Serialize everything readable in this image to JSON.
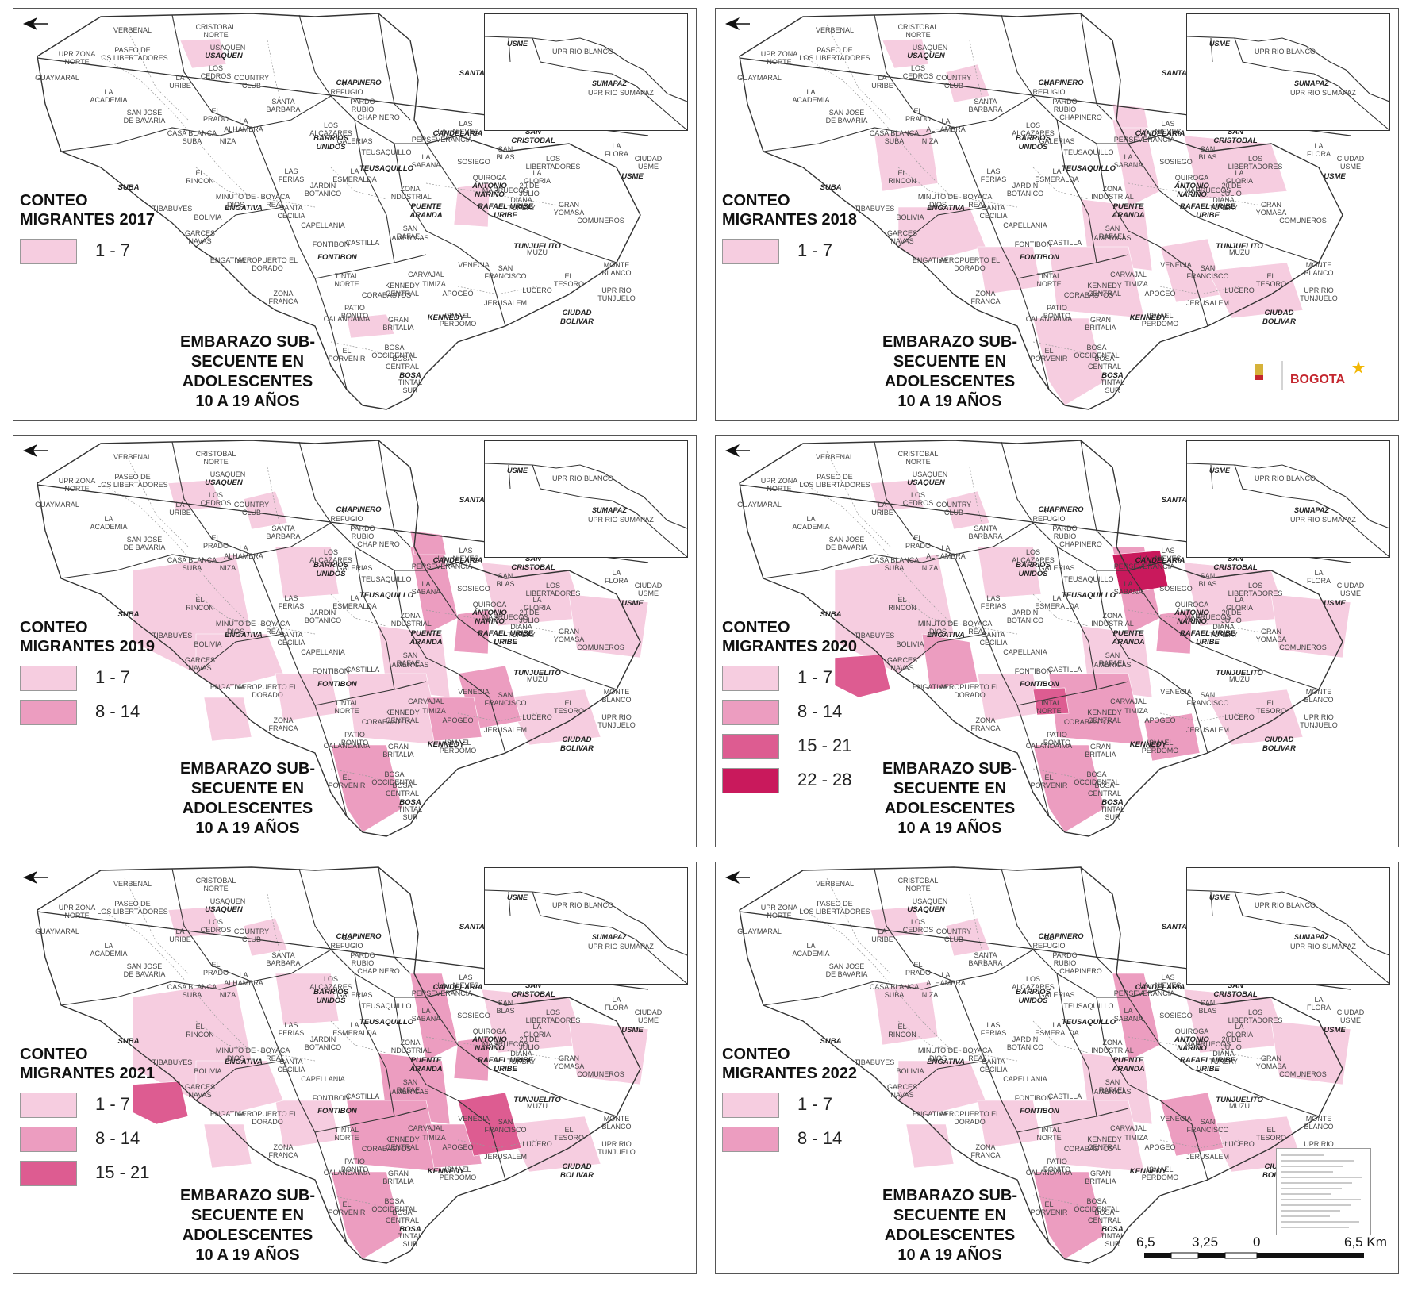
{
  "legend_colors": {
    "1-7": "#f6cde0",
    "8-14": "#ec9dc0",
    "15-21": "#dd5c91",
    "22-28": "#c9195c"
  },
  "subject_lines": [
    "EMBARAZO SUB-",
    "SECUENTE EN",
    "ADOLESCENTES",
    "10 A 19 AÑOS"
  ],
  "panels": [
    {
      "title_line1": "CONTEO",
      "title_line2": "MIGRANTES 2017",
      "legend": [
        {
          "range": "1 - 7",
          "color_key": "1-7"
        }
      ]
    },
    {
      "title_line1": "CONTEO",
      "title_line2": "MIGRANTES 2018",
      "legend": [
        {
          "range": "1 - 7",
          "color_key": "1-7"
        }
      ]
    },
    {
      "title_line1": "CONTEO",
      "title_line2": "MIGRANTES 2019",
      "legend": [
        {
          "range": "1 - 7",
          "color_key": "1-7"
        },
        {
          "range": "8 - 14",
          "color_key": "8-14"
        }
      ]
    },
    {
      "title_line1": "CONTEO",
      "title_line2": "MIGRANTES 2020",
      "legend": [
        {
          "range": "1 - 7",
          "color_key": "1-7"
        },
        {
          "range": "8 - 14",
          "color_key": "8-14"
        },
        {
          "range": "15 - 21",
          "color_key": "15-21"
        },
        {
          "range": "22 - 28",
          "color_key": "22-28"
        }
      ]
    },
    {
      "title_line1": "CONTEO",
      "title_line2": "MIGRANTES 2021",
      "legend": [
        {
          "range": "1 - 7",
          "color_key": "1-7"
        },
        {
          "range": "8 - 14",
          "color_key": "8-14"
        },
        {
          "range": "15 - 21",
          "color_key": "15-21"
        }
      ]
    },
    {
      "title_line1": "CONTEO",
      "title_line2": "MIGRANTES 2022",
      "legend": [
        {
          "range": "1 - 7",
          "color_key": "1-7"
        },
        {
          "range": "8 - 14",
          "color_key": "8-14"
        }
      ]
    }
  ],
  "localities": [
    "USAQUEN",
    "CHAPINERO",
    "SANTA FE",
    "SAN CRISTOBAL",
    "BARRIOS UNIDOS",
    "TEUSAQUILLO",
    "CANDELARIA",
    "ANTONIO NARIÑO",
    "PUENTE ARANDA",
    "RAFAEL URIBE URIBE",
    "SUBA",
    "ENGATIVA",
    "FONTIBON",
    "KENNEDY",
    "TUNJUELITO",
    "BOSA",
    "CIUDAD BOLIVAR",
    "USME"
  ],
  "upz_labels": [
    "CRISTOBAL NORTE",
    "USAQUEN",
    "LOS CEDROS",
    "LA URIBE",
    "COUNTRY CLUB",
    "EL REFUGIO",
    "SANTA BARBARA",
    "EL PRADO",
    "LA ALHAMBRA",
    "PARDO RUBIO",
    "CHAPINERO",
    "LOS ALCAZARES",
    "NIZA",
    "CASA BLANCA SUBA",
    "SAN JOSE DE BAVARIA",
    "LA ACADEMIA",
    "GUAYMARAL",
    "VERBENAL",
    "PASEO DE LOS LIBERTADORES",
    "UPR ZONA NORTE",
    "EL RINCON",
    "TIBABUYES",
    "BOLIVIA",
    "GARCES NAVAS",
    "ENGATIVA",
    "MINUTO DE DIOS",
    "BOYACA REAL",
    "SANTA CECILIA",
    "JARDIN BOTANICO",
    "LAS FERIAS",
    "LA ESMERALDA",
    "GALERIAS",
    "TEUSAQUILLO",
    "LA SABANA",
    "ZONA INDUSTRIAL",
    "SAN RAFAEL",
    "AMERICAS",
    "CASTILLA",
    "FONTIBON",
    "CAPELLANIA",
    "AEROPUERTO EL DORADO",
    "ZONA FRANCA",
    "TINTAL NORTE",
    "CARVAJAL",
    "KENNEDY CENTRAL",
    "CORABASTOS",
    "TIMIZA",
    "PATIO BONITO",
    "CALANDAIMA",
    "GRAN BRITALIA",
    "BOSA OCCIDENTAL",
    "BOSA CENTRAL",
    "EL PORVENIR",
    "TINTAL SUR",
    "APOGEO",
    "VENECIA",
    "SAN FRANCISCO",
    "LUCERO",
    "EL TESORO",
    "ISMAEL PERDOMO",
    "JERUSALEM",
    "MONTE BLANCO",
    "UPR RIO TUNJUELO",
    "LA GLORIA",
    "LOS LIBERTADORES",
    "LA FLORA",
    "CIUDAD USME",
    "COMUNEROS",
    "GRAN YOMASA",
    "DIANA TURBAY",
    "MARRUECOS",
    "QUIROGA",
    "SAN BLAS",
    "SOSIEGO",
    "20 DE JULIO",
    "LA PERSEVERANCIA",
    "LAS NIEVES",
    "MUZU",
    "UPR RIO BLANCO",
    "SUMAPAZ"
  ],
  "inset_labels": [
    "USME",
    "UPR RIO BLANCO",
    "SUMAPAZ",
    "UPR RIO SUMAPAZ"
  ],
  "logo_text": "BOGOTA",
  "scale": {
    "labels": [
      "6,5",
      "3,25",
      "0",
      "6,5 Km"
    ]
  }
}
